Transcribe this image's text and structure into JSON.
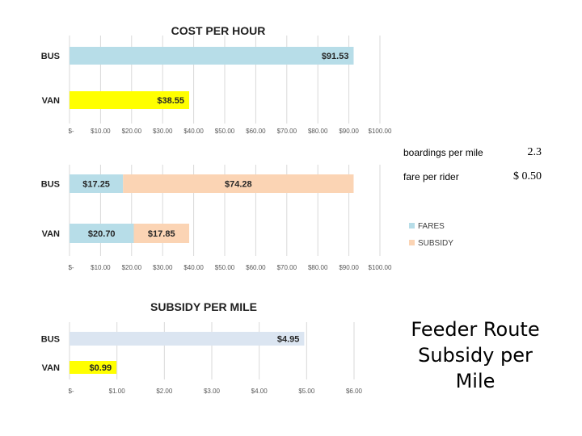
{
  "chart_data": [
    {
      "type": "bar",
      "orientation": "horizontal",
      "title": "COST PER HOUR",
      "categories": [
        "BUS",
        "VAN"
      ],
      "series": [
        {
          "values": [
            91.53,
            38.55
          ],
          "labels": [
            "$91.53",
            "$38.55"
          ],
          "colors": [
            "#b7dde8",
            "#ffff00"
          ]
        }
      ],
      "xlim": [
        0,
        100
      ],
      "xticks": [
        "$-",
        "$10.00",
        "$20.00",
        "$30.00",
        "$40.00",
        "$50.00",
        "$60.00",
        "$70.00",
        "$80.00",
        "$90.00",
        "$100.00"
      ],
      "grid": true
    },
    {
      "type": "bar",
      "orientation": "horizontal",
      "stacked": true,
      "title": "",
      "categories": [
        "BUS",
        "VAN"
      ],
      "series": [
        {
          "name": "FARES",
          "values": [
            17.25,
            20.7
          ],
          "labels": [
            "$17.25",
            "$20.70"
          ],
          "color": "#b7dde8"
        },
        {
          "name": "SUBSIDY",
          "values": [
            74.28,
            17.85
          ],
          "labels": [
            "$74.28",
            "$17.85"
          ],
          "color": "#fbd4b4"
        }
      ],
      "xlim": [
        0,
        100
      ],
      "xticks": [
        "$-",
        "$10.00",
        "$20.00",
        "$30.00",
        "$40.00",
        "$50.00",
        "$60.00",
        "$70.00",
        "$80.00",
        "$90.00",
        "$100.00"
      ],
      "legend": "right",
      "grid": true
    },
    {
      "type": "bar",
      "orientation": "horizontal",
      "title": "SUBSIDY PER MILE",
      "categories": [
        "BUS",
        "VAN"
      ],
      "series": [
        {
          "values": [
            4.95,
            0.99
          ],
          "labels": [
            "$4.95",
            "$0.99"
          ],
          "colors": [
            "#dbe5f1",
            "#ffff00"
          ]
        }
      ],
      "xlim": [
        0,
        6
      ],
      "xticks": [
        "$-",
        "$1.00",
        "$2.00",
        "$3.00",
        "$4.00",
        "$5.00",
        "$6.00"
      ],
      "grid": true
    }
  ],
  "side_table": {
    "rows": [
      {
        "label": "boardings per mile",
        "currency": "",
        "value": "2.3"
      },
      {
        "label": "fare per rider",
        "currency": "$",
        "value": "0.50"
      }
    ]
  },
  "caption": {
    "lines": [
      "Feeder Route",
      "Subsidy per",
      "Mile"
    ]
  }
}
